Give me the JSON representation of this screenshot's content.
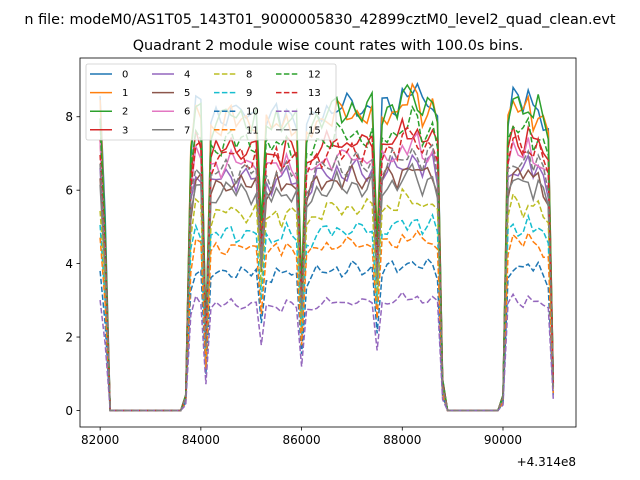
{
  "figure_title": "n file: modeM0/AS1T05_143T01_9000005830_42899cztM0_level2_quad_clean.evt",
  "chart_data": {
    "type": "line",
    "title": "Quadrant 2 module wise count rates with 100.0s bins.",
    "xlabel": "",
    "ylabel": "",
    "x_offset_label": "+4.314e8",
    "xlim": [
      81600,
      91450
    ],
    "ylim": [
      -0.45,
      9.6
    ],
    "x_ticks": [
      82000,
      84000,
      86000,
      88000,
      90000
    ],
    "x_tick_labels": [
      "82000",
      "84000",
      "86000",
      "88000",
      "90000"
    ],
    "y_ticks": [
      0,
      2,
      4,
      6,
      8
    ],
    "y_tick_labels": [
      "0",
      "2",
      "4",
      "6",
      "8"
    ],
    "grid": false,
    "legend_position": "top-left",
    "legend_columns": 4,
    "x": [
      82000,
      82100,
      82200,
      82300,
      82400,
      82500,
      82600,
      82700,
      82800,
      82900,
      83000,
      83100,
      83200,
      83300,
      83400,
      83500,
      83600,
      83700,
      83800,
      83900,
      84000,
      84100,
      84200,
      84300,
      84400,
      84500,
      84600,
      84700,
      84800,
      84900,
      85000,
      85100,
      85200,
      85300,
      85400,
      85500,
      85600,
      85700,
      85800,
      85900,
      86000,
      86100,
      86200,
      86300,
      86400,
      86500,
      86600,
      86700,
      86800,
      86900,
      87000,
      87100,
      87200,
      87300,
      87400,
      87500,
      87600,
      87700,
      87800,
      87900,
      88000,
      88100,
      88200,
      88300,
      88400,
      88500,
      88600,
      88700,
      88800,
      88900,
      89000,
      89100,
      89200,
      89300,
      89400,
      89500,
      89600,
      89700,
      89800,
      89900,
      90000,
      90100,
      90200,
      90300,
      90400,
      90500,
      90600,
      90700,
      90800,
      90900,
      91000
    ],
    "envelope": [
      1.0,
      0.6,
      0,
      0,
      0,
      0,
      0,
      0,
      0,
      0,
      0,
      0,
      0,
      0,
      0,
      0,
      0,
      0.05,
      0.85,
      1.0,
      0.98,
      0.25,
      0.93,
      0.96,
      0.95,
      0.97,
      0.98,
      0.95,
      0.97,
      0.96,
      0.95,
      0.97,
      0.6,
      0.94,
      0.93,
      0.97,
      0.93,
      0.98,
      0.95,
      0.94,
      0.4,
      0.9,
      0.93,
      0.97,
      0.96,
      0.98,
      0.97,
      1.0,
      0.97,
      0.98,
      1.0,
      0.99,
      0.97,
      0.98,
      1.0,
      0.55,
      0.97,
      0.99,
      1.0,
      0.98,
      1.03,
      1.02,
      1.04,
      1.03,
      0.98,
      1.01,
      1.02,
      0.95,
      0.1,
      0,
      0,
      0,
      0,
      0,
      0,
      0,
      0,
      0,
      0,
      0,
      0.05,
      0.95,
      1.02,
      1.0,
      0.98,
      1.03,
      0.97,
      1.0,
      0.95,
      0.9,
      0.1
    ],
    "series": [
      {
        "name": "0",
        "color": "#1f77b4",
        "dash": "solid",
        "level": 8.4
      },
      {
        "name": "1",
        "color": "#ff7f0e",
        "dash": "solid",
        "level": 8.2
      },
      {
        "name": "2",
        "color": "#2ca02c",
        "dash": "solid",
        "level": 8.3
      },
      {
        "name": "3",
        "color": "#d62728",
        "dash": "solid",
        "level": 7.4
      },
      {
        "name": "4",
        "color": "#9467bd",
        "dash": "solid",
        "level": 6.6
      },
      {
        "name": "5",
        "color": "#8c564b",
        "dash": "solid",
        "level": 6.4
      },
      {
        "name": "6",
        "color": "#e377c2",
        "dash": "solid",
        "level": 7.0
      },
      {
        "name": "7",
        "color": "#7f7f7f",
        "dash": "solid",
        "level": 6.2
      },
      {
        "name": "8",
        "color": "#bcbd22",
        "dash": "dashed",
        "level": 5.6
      },
      {
        "name": "9",
        "color": "#17becf",
        "dash": "dashed",
        "level": 5.0
      },
      {
        "name": "10",
        "color": "#1f77b4",
        "dash": "dashed",
        "level": 3.9
      },
      {
        "name": "11",
        "color": "#ff7f0e",
        "dash": "dashed",
        "level": 4.6
      },
      {
        "name": "12",
        "color": "#2ca02c",
        "dash": "dashed",
        "level": 7.6
      },
      {
        "name": "13",
        "color": "#d62728",
        "dash": "dashed",
        "level": 7.2
      },
      {
        "name": "14",
        "color": "#9467bd",
        "dash": "dashed",
        "level": 3.0
      },
      {
        "name": "15",
        "color": "#7f7f7f",
        "dash": "dashed",
        "level": 6.8
      }
    ]
  }
}
